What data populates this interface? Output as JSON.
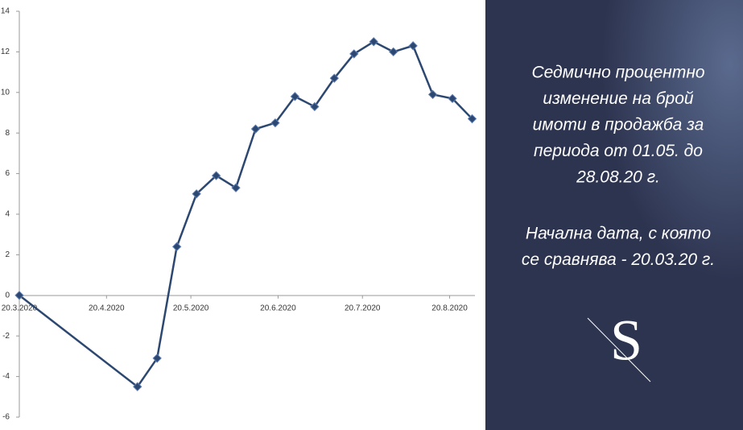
{
  "chart_data": {
    "type": "line",
    "x": [
      "2020-03-20",
      "2020-05-01",
      "2020-05-08",
      "2020-05-15",
      "2020-05-22",
      "2020-05-29",
      "2020-06-05",
      "2020-06-12",
      "2020-06-19",
      "2020-06-26",
      "2020-07-03",
      "2020-07-10",
      "2020-07-17",
      "2020-07-24",
      "2020-07-31",
      "2020-08-07",
      "2020-08-14",
      "2020-08-21",
      "2020-08-28"
    ],
    "series": [
      {
        "color": "#2c4770",
        "values": [
          0,
          -4.5,
          -3.1,
          2.4,
          5.0,
          5.9,
          5.3,
          8.2,
          8.5,
          9.8,
          9.3,
          10.7,
          11.9,
          12.5,
          12.0,
          12.3,
          9.9,
          9.7,
          8.7
        ]
      }
    ],
    "xlim": [
      "2020-03-20",
      "2020-08-29"
    ],
    "xticks": [
      {
        "value": "2020-03-20",
        "label": "20.3.2020"
      },
      {
        "value": "2020-04-20",
        "label": "20.4.2020"
      },
      {
        "value": "2020-05-20",
        "label": "20.5.2020"
      },
      {
        "value": "2020-06-20",
        "label": "20.6.2020"
      },
      {
        "value": "2020-07-20",
        "label": "20.7.2020"
      },
      {
        "value": "2020-08-20",
        "label": "20.8.2020"
      }
    ],
    "ylim": [
      -6,
      14
    ],
    "yticks": [
      -6,
      -4,
      -2,
      0,
      2,
      4,
      6,
      8,
      10,
      12,
      14
    ],
    "grid": false
  },
  "panel": {
    "paragraphs": [
      [
        "Седмично процентно",
        "изменение на брой",
        "имоти в продажба за",
        "периода  от 01.05. до",
        "28.08.20 г."
      ],
      [
        "Начална дата, с която",
        "се сравнява -  20.03.20 г."
      ]
    ],
    "logo": "S"
  }
}
